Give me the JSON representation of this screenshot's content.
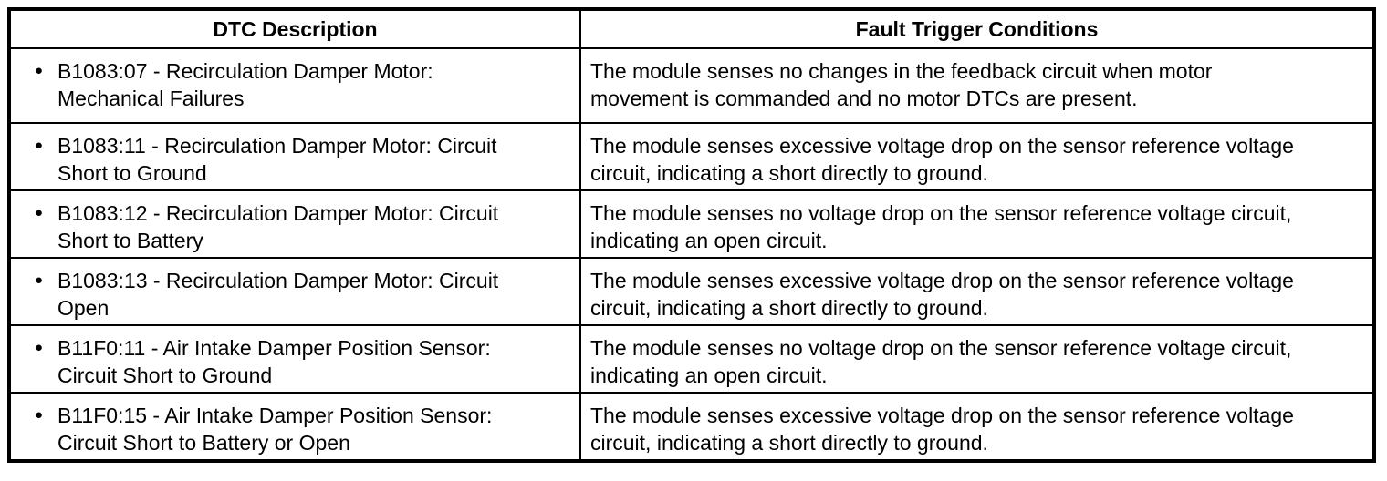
{
  "page": {
    "background_color": "#ffffff",
    "text_color": "#000000",
    "border_color": "#000000"
  },
  "table": {
    "bullet_glyph": "●",
    "columns": [
      {
        "label": "DTC Description"
      },
      {
        "label": "Fault Trigger Conditions"
      }
    ],
    "rows": [
      {
        "dtc": "B1083:07 - Recirculation Damper Motor: Mechanical Failures",
        "condition": "The module senses no changes in the feedback circuit when motor movement is commanded and no motor DTCs are present."
      },
      {
        "dtc": "B1083:11 - Recirculation Damper Motor: Circuit Short to Ground",
        "condition": "The module senses excessive voltage drop on the sensor reference voltage circuit, indicating a short directly to ground."
      },
      {
        "dtc": "B1083:12 - Recirculation Damper Motor: Circuit Short to Battery",
        "condition": "The module senses no voltage drop on the sensor reference voltage circuit, indicating an open circuit."
      },
      {
        "dtc": "B1083:13 - Recirculation Damper Motor: Circuit Open",
        "condition": "The module senses excessive voltage drop on the sensor reference voltage circuit, indicating a short directly to ground."
      },
      {
        "dtc": "B11F0:11 - Air Intake Damper Position Sensor: Circuit Short to Ground",
        "condition": "The module senses no voltage drop on the sensor reference voltage circuit, indicating an open circuit."
      },
      {
        "dtc": "B11F0:15 - Air Intake Damper Position Sensor: Circuit Short to Battery or Open",
        "condition": "The module senses excessive voltage drop on the sensor reference voltage circuit, indicating a short directly to ground."
      }
    ]
  }
}
